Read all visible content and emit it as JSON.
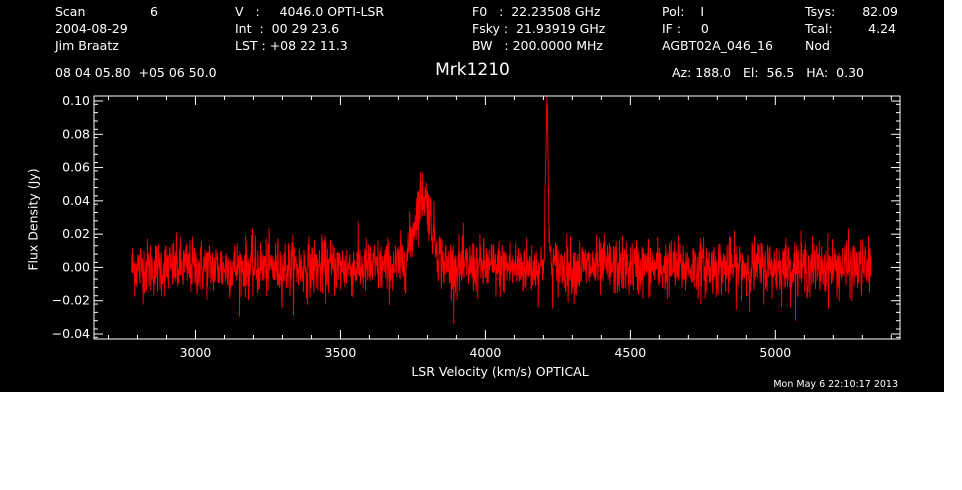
{
  "header": {
    "col1": {
      "scan_label": "Scan",
      "scan_value": "6",
      "date": "2004-08-29",
      "observer": "Jim Braatz",
      "position": "08 04 05.80  +05 06 50.0"
    },
    "col2": {
      "v_line": "V   :     4046.0 OPTI-LSR",
      "int_line": "Int  :  00 29 23.6",
      "lst_line": "LST : +08 22 11.3"
    },
    "col3": {
      "f0_line": "F0   :  22.23508 GHz",
      "fsky_line": "Fsky :  21.93919 GHz",
      "bw_line": "BW   : 200.0000 MHz"
    },
    "col4": {
      "pol_line": "Pol:    I",
      "if_line": "IF :     0",
      "project": "AGBT02A_046_16"
    },
    "col5": {
      "tsys_label": "Tsys:",
      "tsys_value": "82.09",
      "tcal_label": "Tcal:",
      "tcal_value": "4.24",
      "mode": "Nod"
    },
    "source": "Mrk1210",
    "pointing": "Az: 188.0   El:  56.5   HA:  0.30"
  },
  "timestamp": "Mon May  6 22:10:17 2013",
  "colors": {
    "background": "#000000",
    "axes": "#ffffff",
    "series": "#ff0000"
  },
  "chart_data": {
    "type": "line",
    "title": "Mrk1210",
    "xlabel": "LSR Velocity (km/s) OPTICAL",
    "ylabel": "Flux Density (Jy)",
    "xlim": [
      2650,
      5430
    ],
    "ylim": [
      -0.043,
      0.103
    ],
    "x_ticks": [
      3000,
      3500,
      4000,
      4500,
      5000
    ],
    "x_tick_labels": [
      "3000",
      "3500",
      "4000",
      "4500",
      "5000"
    ],
    "y_ticks": [
      -0.04,
      -0.02,
      0.0,
      0.02,
      0.04,
      0.06,
      0.08,
      0.1
    ],
    "y_tick_labels": [
      "−0.04",
      "−0.02",
      "0.00",
      "0.02",
      "0.04",
      "0.06",
      "0.08",
      "0.10"
    ],
    "grid": false,
    "series": [
      {
        "x_range": [
          2780,
          5330
        ],
        "noise_rms": 0.0085,
        "baseline": 0.0,
        "features": [
          {
            "x": 3785,
            "y": 0.043,
            "width_kms": 30
          },
          {
            "x": 4212,
            "y": 0.088,
            "width_kms": 5
          }
        ]
      }
    ]
  }
}
